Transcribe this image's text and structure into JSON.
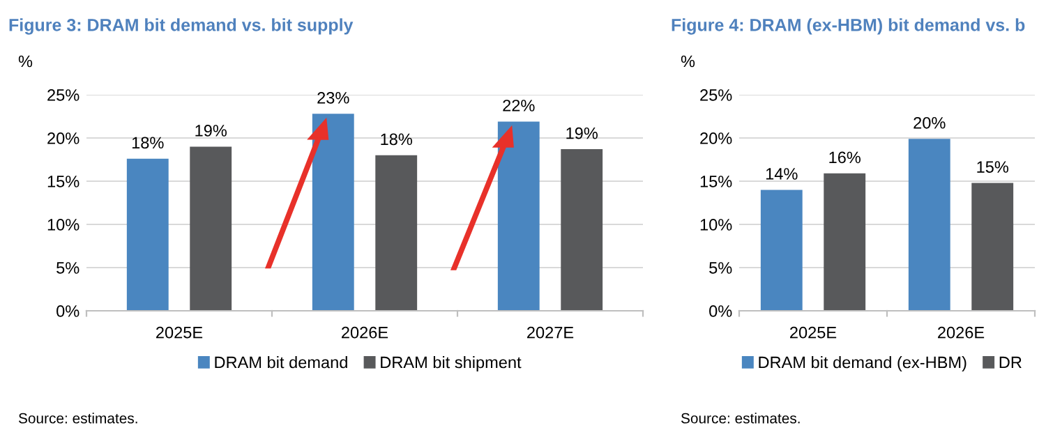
{
  "chart_data": [
    {
      "type": "bar",
      "title": "Figure 3: DRAM bit demand vs. bit supply",
      "ylabel": "%",
      "categories": [
        "2025E",
        "2026E",
        "2027E"
      ],
      "series": [
        {
          "name": "DRAM bit demand",
          "color": "#4a86c0",
          "values": [
            17.6,
            22.8,
            21.9
          ],
          "value_labels": [
            "18%",
            "23%",
            "22%"
          ]
        },
        {
          "name": "DRAM bit shipment",
          "color": "#58595b",
          "values": [
            19.0,
            18.0,
            18.7
          ],
          "value_labels": [
            "19%",
            "18%",
            "19%"
          ]
        }
      ],
      "ylim": [
        0,
        25
      ],
      "yticks": [
        {
          "value": 0,
          "label": "0%"
        },
        {
          "value": 5,
          "label": "5%"
        },
        {
          "value": 10,
          "label": "10%"
        },
        {
          "value": 15,
          "label": "15%"
        },
        {
          "value": 20,
          "label": "20%"
        },
        {
          "value": 25,
          "label": "25%"
        }
      ],
      "grid": "y",
      "legend": "bottom",
      "annotations": [
        "Source: estimates."
      ]
    },
    {
      "type": "bar",
      "title": "Figure 4: DRAM (ex-HBM) bit demand vs. b",
      "ylabel": "%",
      "categories": [
        "2025E",
        "2026E"
      ],
      "series": [
        {
          "name": "DRAM bit demand (ex-HBM)",
          "color": "#4a86c0",
          "values": [
            14.0,
            19.9
          ],
          "value_labels": [
            "14%",
            "20%"
          ]
        },
        {
          "name": "DR",
          "color": "#58595b",
          "values": [
            15.9,
            14.8
          ],
          "value_labels": [
            "16%",
            "15%"
          ]
        }
      ],
      "ylim": [
        0,
        25
      ],
      "yticks": [
        {
          "value": 0,
          "label": "0%"
        },
        {
          "value": 5,
          "label": "5%"
        },
        {
          "value": 10,
          "label": "10%"
        },
        {
          "value": 15,
          "label": "15%"
        },
        {
          "value": 20,
          "label": "20%"
        },
        {
          "value": 25,
          "label": "25%"
        }
      ],
      "grid": "y",
      "legend": "bottom",
      "annotations": [
        "Source: estimates."
      ]
    }
  ]
}
